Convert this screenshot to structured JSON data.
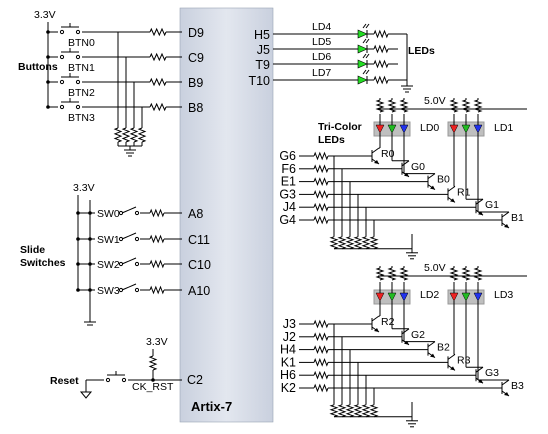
{
  "chip": {
    "name": "Artix-7"
  },
  "supplies": {
    "v33": "3.3V",
    "v50": "5.0V"
  },
  "groups": {
    "buttons": "Buttons",
    "slide_switches_line1": "Slide",
    "slide_switches_line2": "Switches",
    "reset": "Reset",
    "leds": "LEDs",
    "tricolor_line1": "Tri-Color",
    "tricolor_line2": "LEDs"
  },
  "buttons": [
    {
      "name": "BTN0",
      "pin": "D9"
    },
    {
      "name": "BTN1",
      "pin": "C9"
    },
    {
      "name": "BTN2",
      "pin": "B9"
    },
    {
      "name": "BTN3",
      "pin": "B8"
    }
  ],
  "switches": [
    {
      "name": "SW0",
      "pin": "A8"
    },
    {
      "name": "SW1",
      "pin": "C11"
    },
    {
      "name": "SW2",
      "pin": "C10"
    },
    {
      "name": "SW3",
      "pin": "A10"
    }
  ],
  "reset": {
    "name": "CK_RST",
    "pin": "C2"
  },
  "leds": [
    {
      "name": "LD4",
      "pin": "H5"
    },
    {
      "name": "LD5",
      "pin": "J5"
    },
    {
      "name": "LD6",
      "pin": "T9"
    },
    {
      "name": "LD7",
      "pin": "T10"
    }
  ],
  "rgb_top": {
    "leds": [
      "LD0",
      "LD1"
    ],
    "pins": [
      "G6",
      "F6",
      "E1",
      "G3",
      "J4",
      "G4"
    ],
    "transistors": [
      "R0",
      "G0",
      "B0",
      "R1",
      "G1",
      "B1"
    ]
  },
  "rgb_bottom": {
    "leds": [
      "LD2",
      "LD3"
    ],
    "pins": [
      "J3",
      "J2",
      "H4",
      "K1",
      "H6",
      "K2"
    ],
    "transistors": [
      "R2",
      "G2",
      "B2",
      "R3",
      "G3",
      "B3"
    ]
  },
  "colors": {
    "chip_fill": "#d6dce8",
    "led_green": "#22dd22",
    "rgb_red": "#ee2222",
    "rgb_green": "#22bb22",
    "rgb_blue": "#2233ee"
  }
}
